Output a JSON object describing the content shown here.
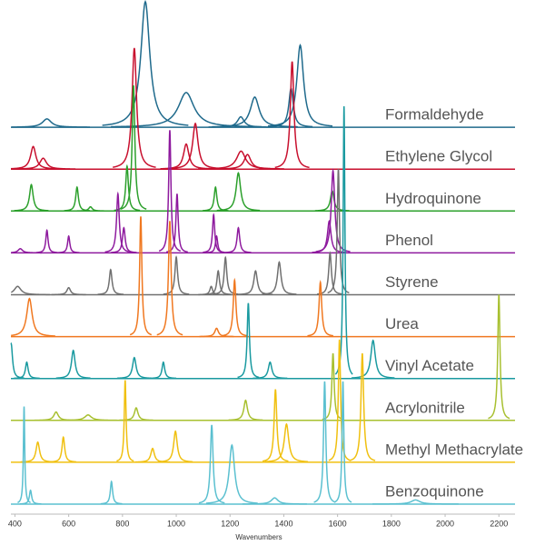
{
  "chart_data": {
    "type": "waterfall",
    "x_label": "Wavenumbers",
    "xlim": [
      385,
      2260
    ],
    "xticks": [
      400,
      600,
      800,
      1000,
      1200,
      1400,
      1600,
      1800,
      2000,
      2200
    ],
    "series": [
      {
        "name": "Formaldehyde",
        "color": "#1f6a8c",
        "peak_x": [
          519,
          885,
          1037,
          1240,
          1292,
          1427,
          1461
        ],
        "peak_heights": [
          0.2,
          3.0,
          0.83,
          0.25,
          0.72,
          0.93,
          1.96
        ],
        "peak_widths": [
          20,
          20,
          35,
          15,
          20,
          10,
          15
        ]
      },
      {
        "name": "Ethylene Glycol",
        "color": "#c8102e",
        "peak_x": [
          468,
          505,
          844,
          1037,
          1071,
          1241,
          1265,
          1431
        ],
        "peak_heights": [
          0.54,
          0.26,
          2.89,
          0.6,
          1.09,
          0.43,
          0.35,
          2.57
        ],
        "peak_widths": [
          12,
          15,
          10,
          12,
          12,
          20,
          15,
          8
        ]
      },
      {
        "name": "Hydroquinone",
        "color": "#2ca02c",
        "peak_x": [
          461,
          631,
          681,
          817,
          841,
          1146,
          1231,
          1580
        ],
        "peak_heights": [
          0.63,
          0.57,
          0.1,
          1.07,
          3.0,
          0.57,
          0.91,
          0.48
        ],
        "peak_widths": [
          8,
          6,
          8,
          6,
          6,
          6,
          10,
          8
        ]
      },
      {
        "name": "Phenol",
        "color": "#8e1a9e",
        "peak_x": [
          420,
          519,
          600,
          783,
          805,
          976,
          1003,
          1139,
          1150,
          1231,
          1569,
          1583
        ],
        "peak_heights": [
          0.1,
          0.54,
          0.4,
          1.41,
          0.6,
          2.93,
          1.41,
          0.91,
          0.4,
          0.6,
          0.76,
          1.96
        ],
        "peak_widths": [
          10,
          5,
          5,
          6,
          6,
          5,
          5,
          5,
          5,
          6,
          8,
          8
        ]
      },
      {
        "name": "Styrene",
        "color": "#707070",
        "peak_x": [
          410,
          600,
          756,
          1000,
          1130,
          1156,
          1183,
          1295,
          1383,
          1572,
          1603
        ],
        "peak_heights": [
          0.2,
          0.17,
          0.6,
          0.9,
          0.2,
          0.57,
          0.89,
          0.57,
          0.78,
          1.0,
          3.0
        ],
        "peak_widths": [
          15,
          8,
          6,
          6,
          6,
          6,
          6,
          8,
          8,
          6,
          5
        ]
      },
      {
        "name": "Urea",
        "color": "#f07820",
        "peak_x": [
          454,
          868,
          976,
          1150,
          1217,
          1536
        ],
        "peak_heights": [
          0.91,
          2.87,
          2.76,
          0.2,
          1.35,
          1.3
        ],
        "peak_widths": [
          12,
          5,
          6,
          8,
          6,
          6
        ]
      },
      {
        "name": "Vinyl Acetate",
        "color": "#1a9aa0",
        "peak_x": [
          386,
          444,
          617,
          844,
          952,
          1268,
          1349,
          1624,
          1732
        ],
        "peak_heights": [
          0.83,
          0.39,
          0.67,
          0.5,
          0.39,
          1.8,
          0.39,
          6.5,
          0.91
        ],
        "peak_widths": [
          6,
          6,
          8,
          8,
          6,
          5,
          8,
          4,
          10
        ]
      },
      {
        "name": "Acrylonitrile",
        "color": "#a8c030",
        "peak_x": [
          553,
          672,
          851,
          1258,
          1583,
          2200
        ],
        "peak_heights": [
          0.2,
          0.13,
          0.3,
          0.48,
          1.6,
          3.0
        ],
        "peak_widths": [
          10,
          15,
          8,
          8,
          5,
          5
        ]
      },
      {
        "name": "Methyl Methacrylate",
        "color": "#f0c010",
        "peak_x": [
          485,
          580,
          810,
          912,
          997,
          1369,
          1410,
          1607,
          1692
        ],
        "peak_heights": [
          0.48,
          0.6,
          1.96,
          0.33,
          0.74,
          1.74,
          0.91,
          2.93,
          2.6
        ],
        "peak_widths": [
          8,
          6,
          4,
          8,
          8,
          6,
          10,
          5,
          6
        ]
      },
      {
        "name": "Benzoquinone",
        "color": "#5bc0d0",
        "peak_x": [
          434,
          458,
          759,
          1132,
          1207,
          1366,
          1552,
          1620,
          1890
        ],
        "peak_heights": [
          2.33,
          0.33,
          0.54,
          1.89,
          1.41,
          0.15,
          2.93,
          2.93,
          0.1
        ],
        "peak_widths": [
          3,
          5,
          5,
          6,
          12,
          15,
          5,
          4,
          20
        ]
      }
    ]
  }
}
